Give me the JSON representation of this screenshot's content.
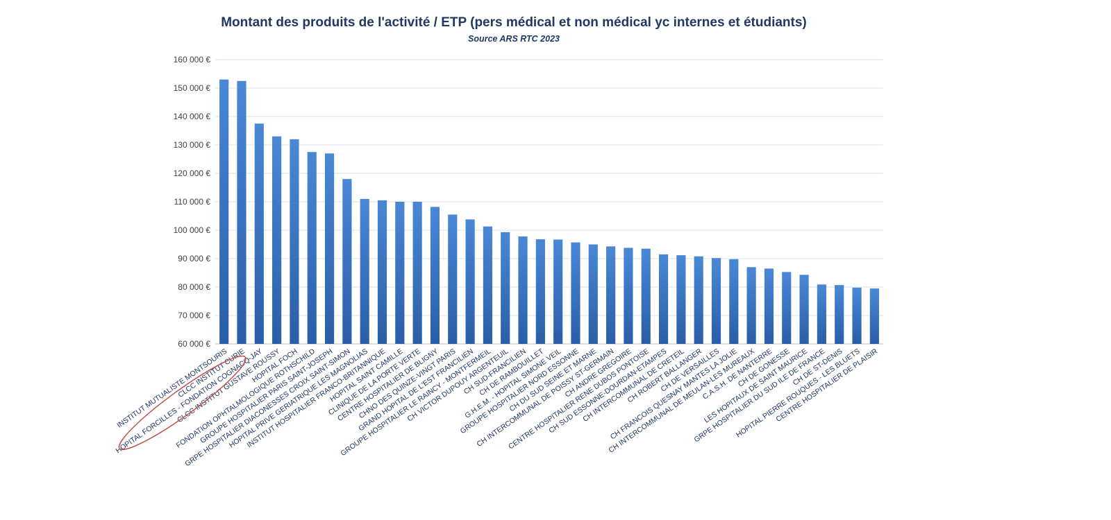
{
  "chart_data": {
    "type": "bar",
    "title": "Montant des produits de l'activité / ETP (pers médical et non médical yc internes et étudiants)",
    "subtitle": "Source ARS RTC 2023",
    "xlabel": "",
    "ylabel": "",
    "ylim": [
      60000,
      160000
    ],
    "y_ticks": [
      60000,
      70000,
      80000,
      90000,
      100000,
      110000,
      120000,
      130000,
      140000,
      150000,
      160000
    ],
    "y_tick_labels": [
      "60 000 €",
      "70 000 €",
      "80 000 €",
      "90 000 €",
      "100 000 €",
      "110 000 €",
      "120 000 €",
      "130 000 €",
      "140 000 €",
      "150 000 €",
      "160 000 €"
    ],
    "grid": true,
    "bar_color": "#3a78c6",
    "grid_color": "#d9e3ef",
    "highlight_color": "#c0504d",
    "highlighted_category": "INSTITUT MUTUALISTE MONTSOURIS",
    "categories": [
      "INSTITUT MUTUALISTE MONTSOURIS",
      "CLCC INSTITUT CURIE",
      "HOPITAL FORCILLES - FONDATION COGNACQ-JAY",
      "CLCC INSTITUT GUSTAVE ROUSSY",
      "HOPITAL FOCH",
      "FONDATION OPHTALMOLOGIQUE ROTHSCHILD",
      "GROUPE HOSPITALIER PARIS SAINT-JOSEPH",
      "GRPE HOSPITALIER DIACONESSES CROIX SAINT-SIMON",
      "HOPITAL PRIVE GERIATRIQUE LES MAGNOLIAS",
      "INSTITUT HOSPITALIER FRANCO-BRITANNIQUE",
      "HOPITAL SAINT CAMILLE",
      "CLINIQUE DE LA PORTE VERTE",
      "CENTRE HOSPITALIER DE BLIGNY",
      "CHNO DES QUINZE-VINGT PARIS",
      "GRAND HOPITAL DE L'EST FRANCILIEN",
      "GROUPE HOSPITALIER LE RAINCY - MONTFERMEIL",
      "CH VICTOR DUPOUY ARGENTEUIL",
      "CH SUD-FRANCILIEN",
      "CH DE RAMBOUILLET",
      "G.H.E.M. - HOPITAL SIMONE VEIL",
      "GROUPE HOSPITALIER NORD ESSONNE",
      "CH DU SUD SEINE ET MARNE",
      "CH INTERCOMMUNAL DE POISSY ST-GERMAIN",
      "CH ANDRE GREGOIRE",
      "CENTRE HOSPITALIER RENE DUBOS PONTOISE",
      "CH SUD ESSONNE-DOURDAN-ETAMPES",
      "CH INTERCOMMUNAL DE CRETEIL",
      "CH ROBERT BALLANGER",
      "CH DE VERSAILLES",
      "CH FRANCOIS QUESNAY MANTES LA JOLIE",
      "CH INTERCOMMUNAL DE MEULAN-LES MUREAUX",
      "C.A.S.H. DE NANTERRE",
      "CH DE GONESSE",
      "LES HOPITAUX DE SAINT MAURICE",
      "GRPE HOSPITALIER DU SUD ILE DE FRANCE",
      "CH DE ST-DENIS",
      "HOPITAL PIERRE ROUQUES - LES BLUETS",
      "CENTRE HOSPITALIER DE PLAISIR"
    ],
    "values": [
      153000,
      152500,
      137500,
      133000,
      132000,
      127500,
      127000,
      118000,
      111000,
      110500,
      110000,
      110000,
      108200,
      105500,
      103800,
      101300,
      99300,
      97800,
      96800,
      96700,
      95700,
      95000,
      94300,
      93800,
      93500,
      91500,
      91200,
      90800,
      90200,
      89800,
      87000,
      86500,
      85300,
      84300,
      80900,
      80700,
      79800,
      79500
    ]
  }
}
